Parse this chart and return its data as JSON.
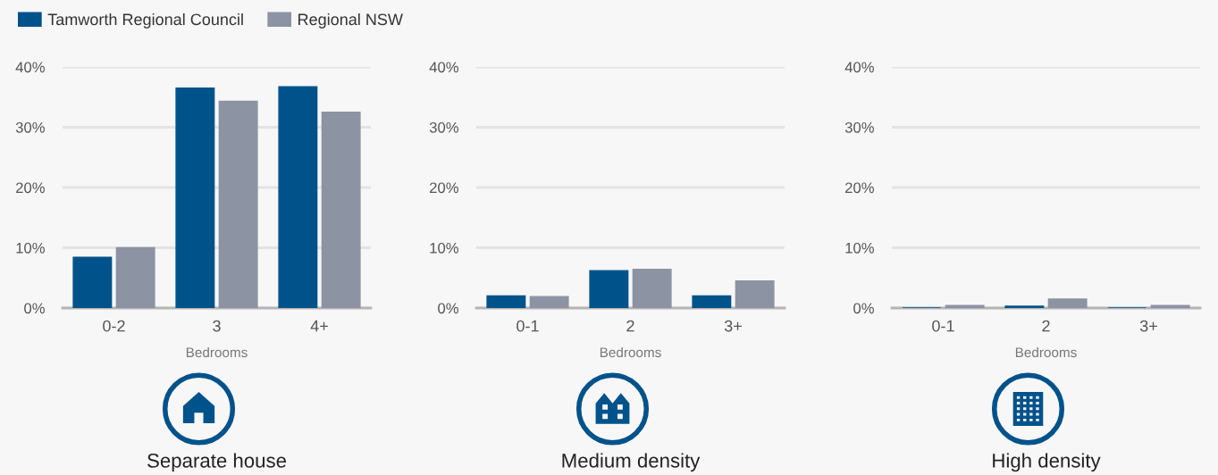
{
  "chart_data": [
    {
      "type": "bar",
      "title": "Separate house",
      "xlabel": "Bedrooms",
      "categories": [
        "0-2",
        "3",
        "4+"
      ],
      "ylim": [
        0,
        40
      ],
      "yticks": [
        {
          "value": 0,
          "label": "0%"
        },
        {
          "value": 10,
          "label": "10%"
        },
        {
          "value": 20,
          "label": "20%"
        },
        {
          "value": 30,
          "label": "30%"
        },
        {
          "value": 40,
          "label": "40%"
        }
      ],
      "grid": "y",
      "legend": "top left",
      "series": [
        {
          "name": "Tamworth Regional Council",
          "color": "#00528b",
          "values": [
            8.4,
            36.5,
            36.7
          ]
        },
        {
          "name": "Regional NSW",
          "color": "#8c93a3",
          "values": [
            10.0,
            34.3,
            32.5
          ]
        }
      ]
    },
    {
      "type": "bar",
      "title": "Medium density",
      "xlabel": "Bedrooms",
      "categories": [
        "0-1",
        "2",
        "3+"
      ],
      "ylim": [
        0,
        40
      ],
      "yticks": [
        {
          "value": 0,
          "label": "0%"
        },
        {
          "value": 10,
          "label": "10%"
        },
        {
          "value": 20,
          "label": "20%"
        },
        {
          "value": 30,
          "label": "30%"
        },
        {
          "value": 40,
          "label": "40%"
        }
      ],
      "grid": "y",
      "series": [
        {
          "color": "#00528b",
          "values": [
            2.0,
            6.2,
            2.0
          ]
        },
        {
          "color": "#8c93a3",
          "values": [
            1.9,
            6.4,
            4.5
          ]
        }
      ]
    },
    {
      "type": "bar",
      "title": "High density",
      "xlabel": "Bedrooms",
      "categories": [
        "0-1",
        "2",
        "3+"
      ],
      "ylim": [
        0,
        40
      ],
      "yticks": [
        {
          "value": 0,
          "label": "0%"
        },
        {
          "value": 10,
          "label": "10%"
        },
        {
          "value": 20,
          "label": "20%"
        },
        {
          "value": 30,
          "label": "30%"
        },
        {
          "value": 40,
          "label": "40%"
        }
      ],
      "grid": "y",
      "series": [
        {
          "color": "#00528b",
          "values": [
            0.0,
            0.3,
            0.0
          ]
        },
        {
          "color": "#8c93a3",
          "values": [
            0.4,
            1.5,
            0.4
          ]
        }
      ]
    }
  ]
}
